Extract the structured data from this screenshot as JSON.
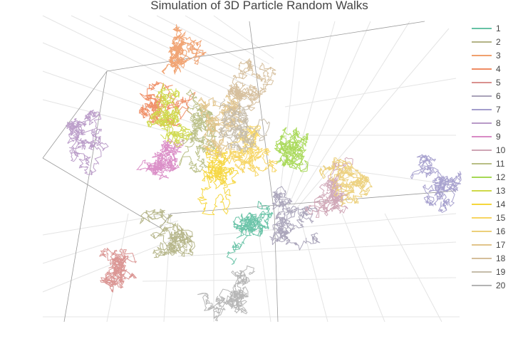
{
  "chart_data": {
    "type": "line",
    "subtype": "3d-random-walk",
    "title": "Simulation of 3D Particle Random Walks",
    "legend_position": "right",
    "grid": true,
    "series": [
      {
        "name": "1",
        "color": "#66c2a5"
      },
      {
        "name": "2",
        "color": "#b3b386"
      },
      {
        "name": "3",
        "color": "#f0a06e"
      },
      {
        "name": "4",
        "color": "#ef8c63"
      },
      {
        "name": "5",
        "color": "#d9918f"
      },
      {
        "name": "6",
        "color": "#a8a2b8"
      },
      {
        "name": "7",
        "color": "#a39dcc"
      },
      {
        "name": "8",
        "color": "#b89ac7"
      },
      {
        "name": "9",
        "color": "#d98ac5"
      },
      {
        "name": "10",
        "color": "#cfa5b5"
      },
      {
        "name": "11",
        "color": "#b8be84"
      },
      {
        "name": "12",
        "color": "#a6d854"
      },
      {
        "name": "13",
        "color": "#cfd949"
      },
      {
        "name": "14",
        "color": "#f5d63c"
      },
      {
        "name": "15",
        "color": "#f7d562"
      },
      {
        "name": "16",
        "color": "#ecd07a"
      },
      {
        "name": "17",
        "color": "#e1c48a"
      },
      {
        "name": "18",
        "color": "#d5be9b"
      },
      {
        "name": "19",
        "color": "#c5bcaa"
      },
      {
        "name": "20",
        "color": "#b3b3b3"
      }
    ]
  }
}
